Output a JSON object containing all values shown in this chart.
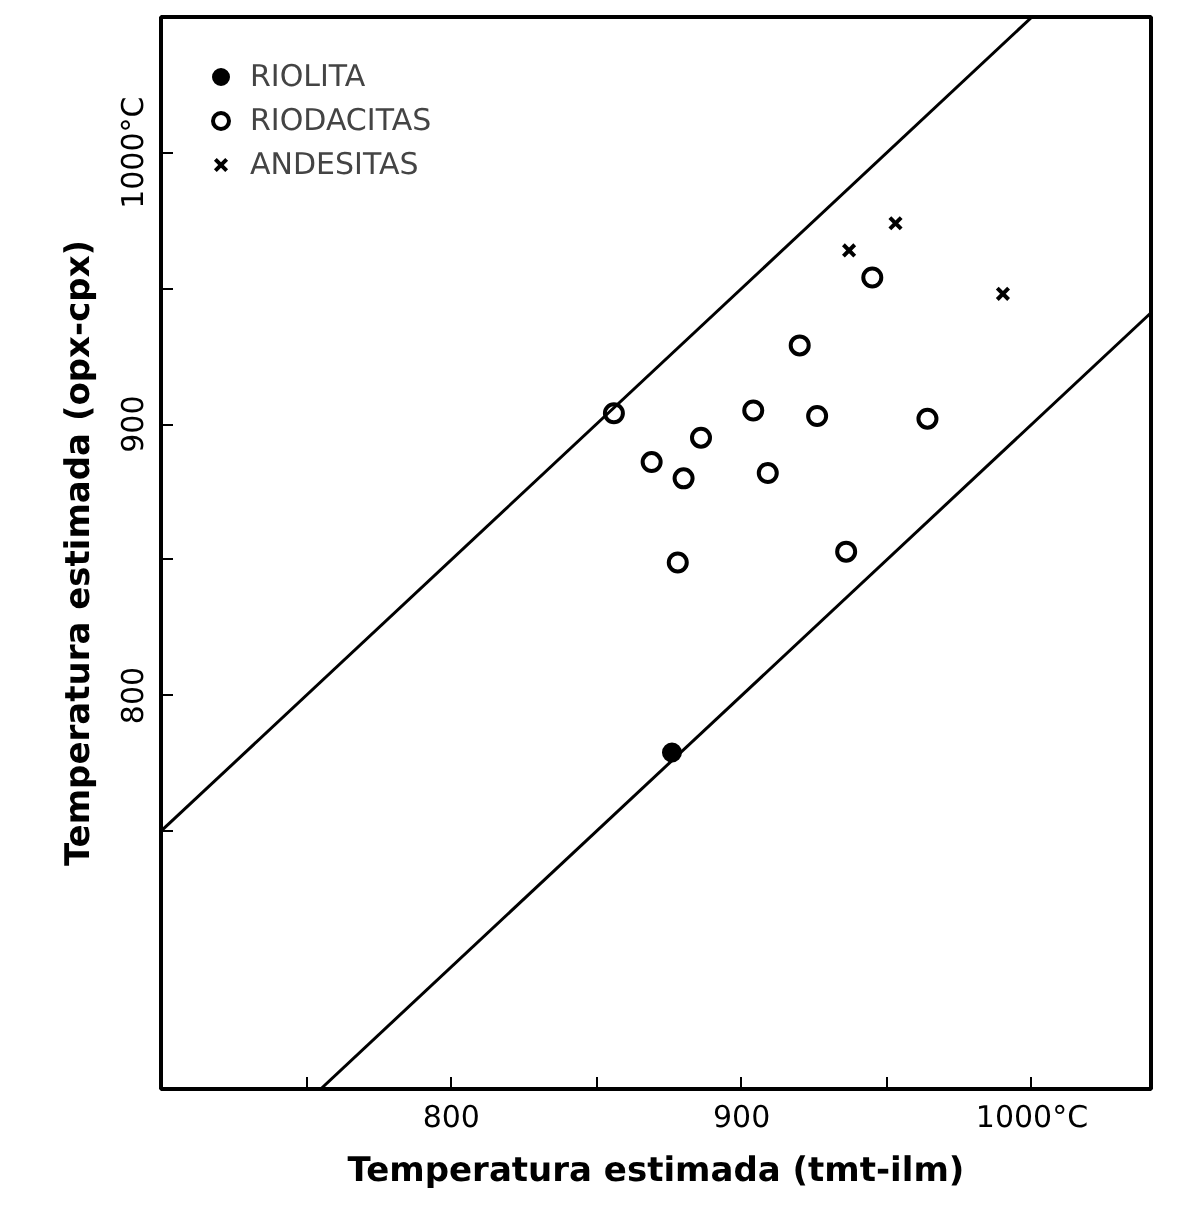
{
  "chart_data": {
    "type": "scatter",
    "xlabel": "Temperatura estimada (tmt-ilm)",
    "ylabel": "Temperatura estimada (opx-cpx)",
    "xlim": [
      700,
      1041
    ],
    "ylim": [
      655,
      1050
    ],
    "xticks": [
      {
        "value": 750,
        "label": null
      },
      800,
      {
        "value": 850,
        "label": null
      },
      900,
      {
        "value": 950,
        "label": null
      },
      {
        "value": 1000,
        "label": "1000°C"
      }
    ],
    "yticks": [
      {
        "value": 750,
        "label": null
      },
      800,
      {
        "value": 850,
        "label": null
      },
      900,
      {
        "value": 950,
        "label": null
      },
      {
        "value": 1000,
        "label": "1000°C"
      }
    ],
    "grid": false,
    "legend": "top left",
    "series": [
      {
        "name": "RIOLITA",
        "color": "#000000",
        "marker": "circle",
        "x": [
          876
        ],
        "values": [
          779
        ]
      },
      {
        "name": "RIODACITAS",
        "color": "#000000",
        "marker": "circle_open",
        "x": [
          856,
          869,
          880,
          886,
          878,
          904,
          909,
          920,
          926,
          936,
          945,
          964
        ],
        "values": [
          904,
          886,
          880,
          895,
          849,
          905,
          882,
          929,
          903,
          853,
          954,
          902
        ]
      },
      {
        "name": "ANDESITAS",
        "color": "#000000",
        "marker": "x",
        "x": [
          937,
          953,
          990
        ],
        "values": [
          964,
          974,
          948
        ]
      },
      {
        "type": "line",
        "color": "#000000",
        "x": [
          700,
          1000
        ],
        "values": [
          750,
          1050
        ]
      },
      {
        "type": "line",
        "color": "#000000",
        "x": [
          755,
          1041
        ],
        "values": [
          655,
          941
        ]
      }
    ]
  }
}
